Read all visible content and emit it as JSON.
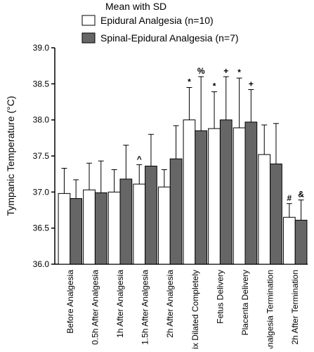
{
  "chart_data": {
    "type": "bar",
    "legend_title": "Mean with SD",
    "ylabel": "Tympanic Temperature (°C)",
    "categories": [
      "Before Analgesia",
      "0.5h After Analgesia",
      "1h After Analgesia",
      "1.5h After Analgesia",
      "2h After Analgesia",
      "Cervix Dilated Completely",
      "Fetus Delivery",
      "Placenta Delivery",
      "Analgesia Termination",
      "2h After Termination"
    ],
    "series": [
      {
        "name": "Epidural Analgesia (n=10)",
        "color": "#ffffff",
        "values": [
          36.98,
          37.03,
          37.0,
          37.11,
          37.07,
          38.0,
          37.88,
          37.89,
          37.52,
          36.65
        ],
        "errors": [
          0.35,
          0.37,
          0.31,
          0.27,
          0.24,
          0.45,
          0.51,
          0.69,
          0.41,
          0.19
        ],
        "markers": [
          null,
          null,
          null,
          "^",
          null,
          "*",
          "*",
          "*",
          null,
          "#"
        ]
      },
      {
        "name": "Spinal-Epidural Analgesia (n=7)",
        "color": "#666666",
        "values": [
          36.91,
          36.99,
          37.18,
          37.36,
          37.46,
          37.85,
          38.0,
          37.97,
          37.39,
          36.61
        ],
        "errors": [
          0.26,
          0.44,
          0.47,
          0.44,
          0.46,
          0.75,
          0.6,
          0.45,
          0.56,
          0.28
        ],
        "markers": [
          null,
          null,
          null,
          null,
          null,
          "%",
          "+",
          "+",
          null,
          "&"
        ]
      }
    ],
    "ylim": [
      36.0,
      39.0
    ],
    "yticks": [
      {
        "value": 36.0,
        "label": "36.0"
      },
      {
        "value": 36.5,
        "label": "36.5"
      },
      {
        "value": 37.0,
        "label": "37.0"
      },
      {
        "value": 37.5,
        "label": "37.5"
      },
      {
        "value": 38.0,
        "label": "38.0"
      },
      {
        "value": 38.5,
        "label": "38.5"
      },
      {
        "value": 39.0,
        "label": "39.0"
      }
    ]
  }
}
